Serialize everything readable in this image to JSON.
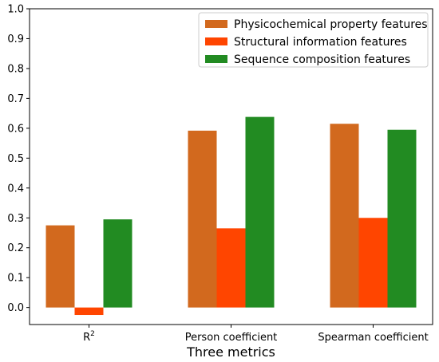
{
  "chart_data": {
    "type": "bar",
    "title": "",
    "xlabel": "Three metrics",
    "ylabel": "",
    "categories": [
      {
        "base": "R",
        "sup": "2"
      },
      {
        "base": "Person coefficient",
        "sup": ""
      },
      {
        "base": "Spearman coefficient",
        "sup": ""
      }
    ],
    "series": [
      {
        "name": "Physicochemical property features",
        "color": "#d2691e",
        "values": [
          0.275,
          0.592,
          0.615
        ]
      },
      {
        "name": "Structural information features",
        "color": "#ff4500",
        "values": [
          -0.025,
          0.265,
          0.3
        ]
      },
      {
        "name": "Sequence composition features",
        "color": "#228b22",
        "values": [
          0.295,
          0.638,
          0.595
        ]
      }
    ],
    "ylim": [
      -0.057,
      1.0
    ],
    "yticks": [
      "0.0",
      "0.1",
      "0.2",
      "0.3",
      "0.4",
      "0.5",
      "0.6",
      "0.7",
      "0.8",
      "0.9",
      "1.0"
    ],
    "grid": false,
    "legend": "top-right"
  }
}
